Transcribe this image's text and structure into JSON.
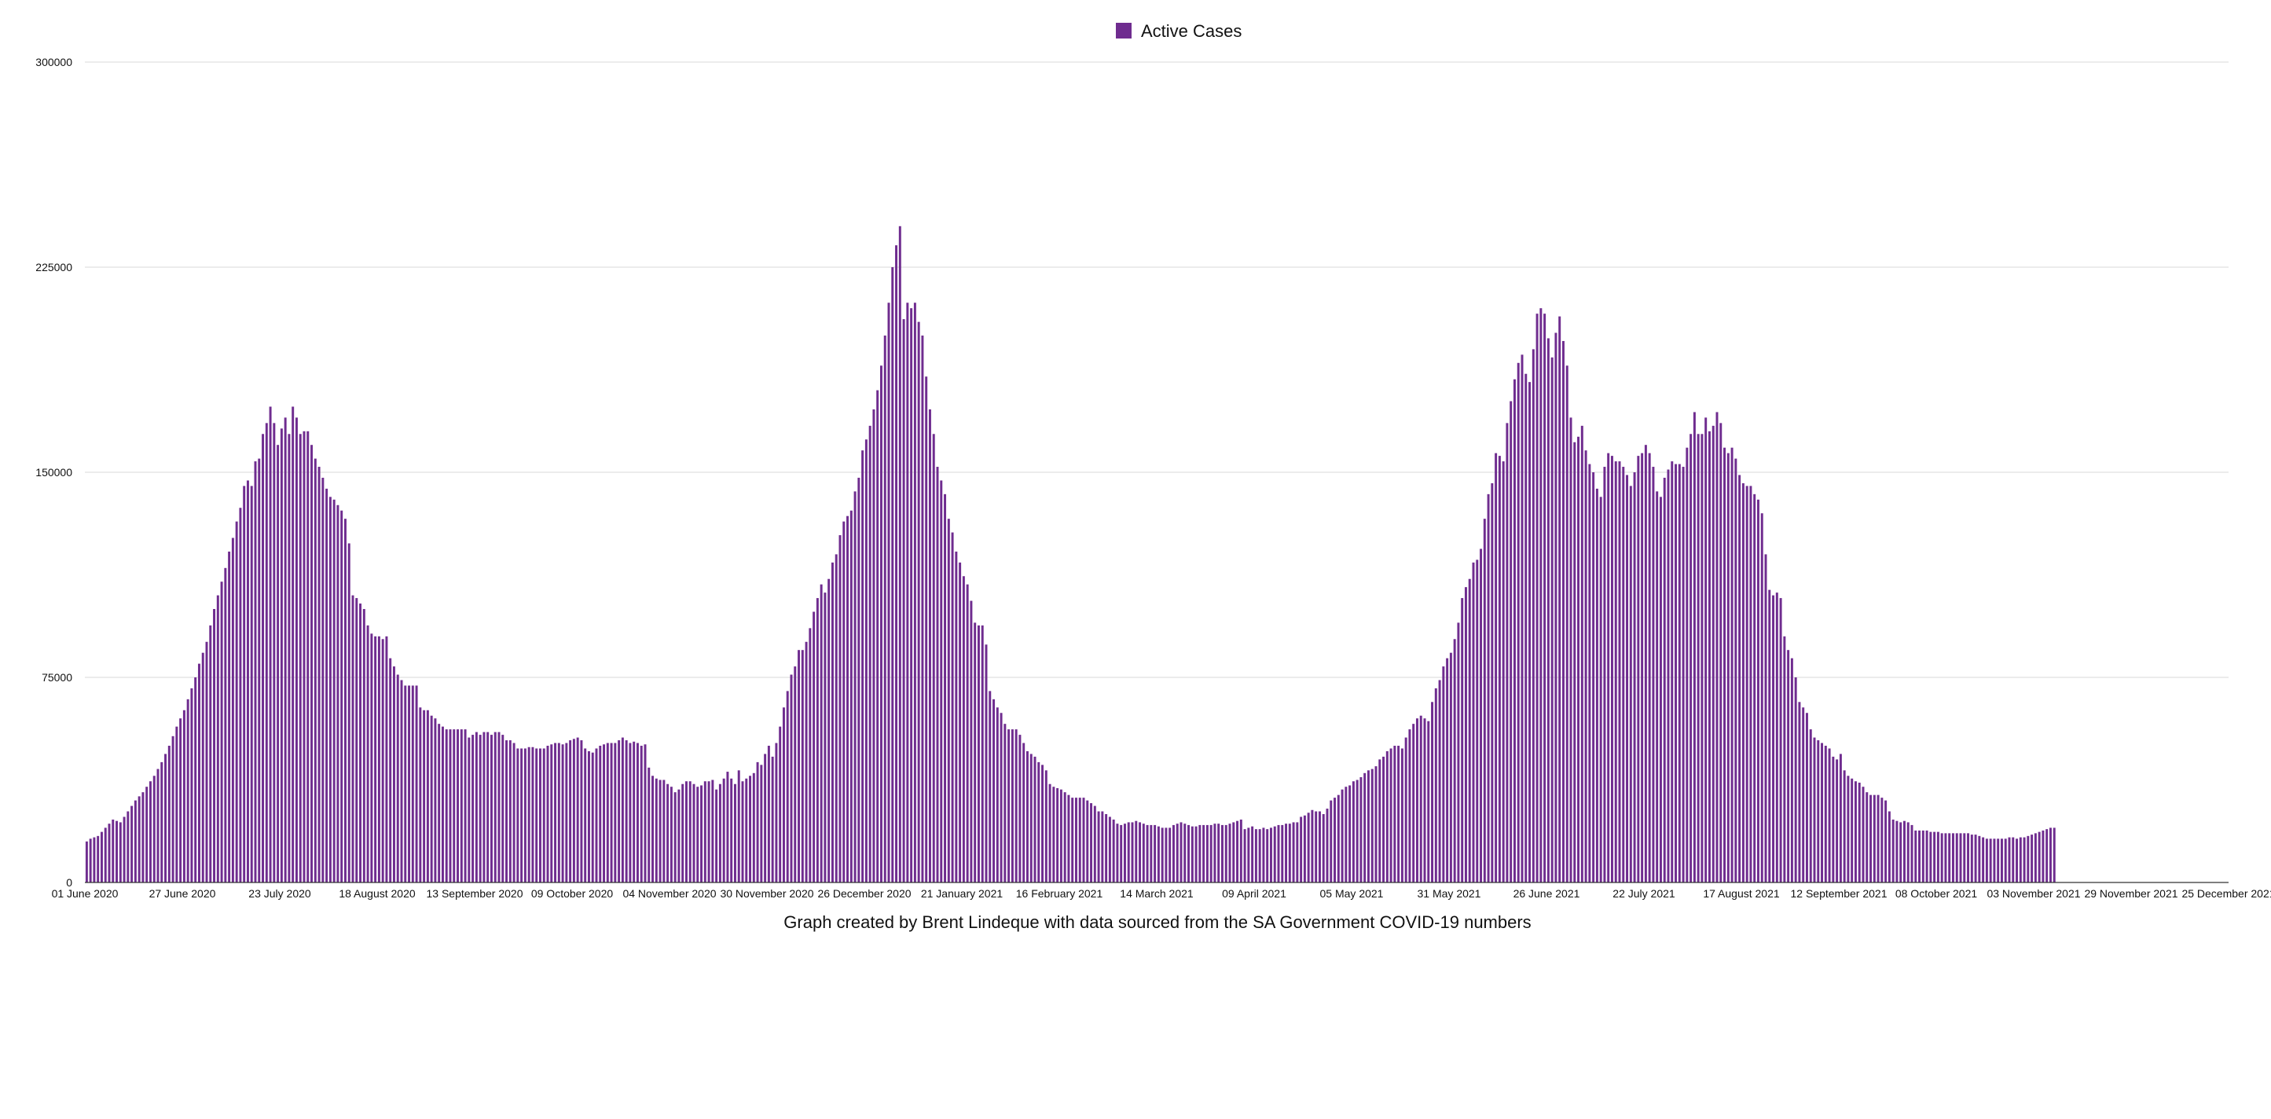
{
  "chart_data": {
    "type": "bar",
    "x_start": "2020-06-01",
    "x_step_days": 1,
    "xlim": [
      "2020-06-01",
      "2021-12-25"
    ],
    "ylim": [
      0,
      300000
    ],
    "y_ticks": [
      "0",
      "75000",
      "150000",
      "225000",
      "300000"
    ],
    "x_tick_labels": [
      "01 June 2020",
      "27 June 2020",
      "23 July 2020",
      "18 August 2020",
      "13 September 2020",
      "09 October 2020",
      "04 November 2020",
      "30 November 2020",
      "26 December 2020",
      "21 January 2021",
      "16 February 2021",
      "14 March 2021",
      "09 April 2021",
      "05 May 2021",
      "31 May 2021",
      "26 June 2021",
      "22 July 2021",
      "17 August 2021",
      "12 September 2021",
      "08 October 2021",
      "03 November 2021",
      "29 November 2021",
      "25 December 2021"
    ],
    "grid": true,
    "legend": "top-center",
    "series": [
      {
        "name": "Active Cases",
        "color": "#6f2c8f",
        "values": [
          15000,
          16000,
          16500,
          17000,
          18500,
          20000,
          21500,
          23000,
          22500,
          22000,
          24000,
          26000,
          28000,
          30000,
          31500,
          33000,
          35000,
          37000,
          39000,
          41500,
          44000,
          47000,
          50000,
          53500,
          57000,
          60000,
          63000,
          67000,
          71000,
          75000,
          80000,
          84000,
          88000,
          94000,
          100000,
          105000,
          110000,
          115000,
          121000,
          126000,
          132000,
          137000,
          145000,
          147000,
          145000,
          154000,
          155000,
          164000,
          168000,
          174000,
          168000,
          160000,
          166000,
          170000,
          164000,
          174000,
          170000,
          164000,
          165000,
          165000,
          160000,
          155000,
          152000,
          148000,
          144000,
          141000,
          140000,
          138000,
          136000,
          133000,
          124000,
          105000,
          104000,
          102000,
          100000,
          94000,
          91000,
          90000,
          90000,
          89000,
          90000,
          82000,
          79000,
          76000,
          74000,
          72000,
          72000,
          72000,
          72000,
          64000,
          63000,
          63000,
          61000,
          60000,
          58000,
          57000,
          56000,
          56000,
          56000,
          56000,
          56000,
          56000,
          53000,
          54000,
          55000,
          54000,
          55000,
          55000,
          54000,
          55000,
          55000,
          54000,
          52000,
          52000,
          51000,
          49000,
          49000,
          49000,
          49500,
          49500,
          49000,
          49000,
          49000,
          50000,
          50500,
          51000,
          51000,
          50500,
          51000,
          52000,
          52500,
          53000,
          52000,
          49000,
          48000,
          47500,
          49000,
          50000,
          50500,
          51000,
          51000,
          51000,
          52000,
          53000,
          52000,
          51000,
          51500,
          51000,
          50000,
          50500,
          42000,
          39000,
          38000,
          37500,
          37500,
          36000,
          35000,
          33000,
          34000,
          36000,
          37000,
          37000,
          36000,
          35000,
          35500,
          37000,
          37000,
          37500,
          34000,
          36000,
          38000,
          40500,
          38000,
          36000,
          41000,
          37000,
          38000,
          39000,
          40000,
          44000,
          43000,
          47000,
          50000,
          46000,
          51000,
          57000,
          64000,
          70000,
          76000,
          79000,
          85000,
          85000,
          88000,
          93000,
          99000,
          104000,
          109000,
          106000,
          111000,
          117000,
          120000,
          127000,
          132000,
          134000,
          136000,
          143000,
          148000,
          158000,
          162000,
          167000,
          173000,
          180000,
          189000,
          200000,
          212000,
          225000,
          233000,
          240000,
          206000,
          212000,
          210000,
          212000,
          205000,
          200000,
          185000,
          173000,
          164000,
          152000,
          147000,
          142000,
          133000,
          128000,
          121000,
          117000,
          112000,
          109000,
          103000,
          95000,
          94000,
          94000,
          87000,
          70000,
          67000,
          64000,
          62000,
          58000,
          56000,
          56000,
          56000,
          54000,
          51000,
          48000,
          47000,
          46000,
          44000,
          43000,
          41000,
          36000,
          35000,
          34500,
          34000,
          33000,
          32000,
          31000,
          31000,
          31000,
          31000,
          30000,
          29000,
          28000,
          26000,
          26000,
          25000,
          24000,
          23000,
          21500,
          21000,
          21500,
          22000,
          22000,
          22500,
          22000,
          21500,
          21000,
          21000,
          21000,
          20500,
          20000,
          20000,
          20000,
          21000,
          21500,
          22000,
          21500,
          21000,
          20500,
          20500,
          21000,
          21000,
          21000,
          21000,
          21500,
          21500,
          21000,
          21000,
          21500,
          22000,
          22500,
          23000,
          19500,
          20000,
          20500,
          19500,
          19500,
          20000,
          19500,
          20000,
          20500,
          21000,
          21000,
          21500,
          21500,
          22000,
          22000,
          24000,
          24500,
          25500,
          26500,
          26000,
          26000,
          25000,
          27000,
          30000,
          31000,
          32000,
          34000,
          35000,
          35500,
          37000,
          37500,
          38500,
          40000,
          41000,
          41500,
          42500,
          45000,
          46000,
          48000,
          49000,
          50000,
          50000,
          49000,
          53000,
          56000,
          58000,
          60000,
          61000,
          60000,
          59000,
          66000,
          71000,
          74000,
          79000,
          82000,
          84000,
          89000,
          95000,
          104000,
          108000,
          111000,
          117000,
          118000,
          122000,
          133000,
          142000,
          146000,
          157000,
          156000,
          154000,
          168000,
          176000,
          184000,
          190000,
          193000,
          186000,
          183000,
          195000,
          208000,
          210000,
          208000,
          199000,
          192000,
          201000,
          207000,
          198000,
          189000,
          170000,
          161000,
          163000,
          167000,
          158000,
          153000,
          150000,
          144000,
          141000,
          152000,
          157000,
          156000,
          154000,
          154000,
          152000,
          149000,
          145000,
          150000,
          156000,
          157000,
          160000,
          157000,
          152000,
          143000,
          141000,
          148000,
          151000,
          154000,
          153000,
          153000,
          152000,
          159000,
          164000,
          172000,
          164000,
          164000,
          170000,
          165000,
          167000,
          172000,
          168000,
          159000,
          157000,
          159000,
          155000,
          149000,
          146000,
          145000,
          145000,
          142000,
          140000,
          135000,
          120000,
          107000,
          105000,
          106000,
          104000,
          90000,
          85000,
          82000,
          75000,
          66000,
          64000,
          62000,
          56000,
          53000,
          52000,
          51000,
          50000,
          49000,
          46000,
          45000,
          47000,
          41000,
          39000,
          38000,
          37000,
          36500,
          35000,
          33000,
          32000,
          32000,
          32000,
          31000,
          30000,
          26000,
          23000,
          22500,
          22000,
          22500,
          22000,
          21000,
          19000,
          19000,
          19000,
          19000,
          18500,
          18500,
          18500,
          18000,
          18000,
          18000,
          18000,
          18000,
          18000,
          18000,
          18000,
          17500,
          17500,
          17000,
          16500,
          16000,
          16000,
          16000,
          16000,
          16000,
          16000,
          16500,
          16500,
          16000,
          16500,
          16500,
          17000,
          17500,
          18000,
          18500,
          19000,
          19500,
          20000,
          20000
        ]
      }
    ],
    "caption": "Graph created by Brent Lindeque with data sourced from the SA Government COVID-19 numbers"
  }
}
